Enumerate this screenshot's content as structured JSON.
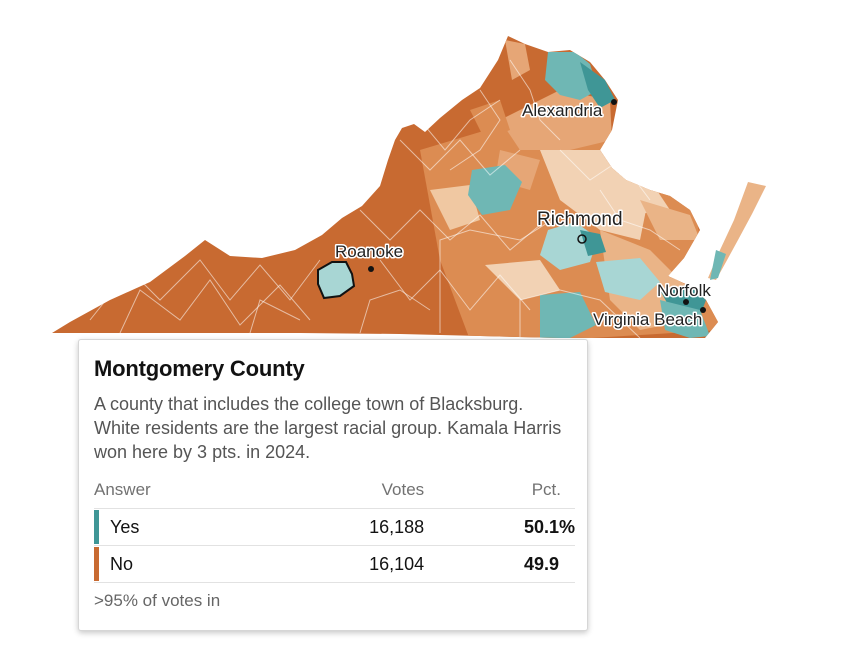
{
  "colors": {
    "yes_strong": "#3f9696",
    "yes_mid": "#6fb7b4",
    "yes_light": "#a8d6d4",
    "no_strong": "#c86a31",
    "no_mid": "#dc8c52",
    "no_light": "#eab487",
    "no_pale": "#f2d2b4"
  },
  "map": {
    "cities": [
      {
        "name": "Alexandria"
      },
      {
        "name": "Richmond"
      },
      {
        "name": "Roanoke"
      },
      {
        "name": "Norfolk"
      },
      {
        "name": "Virginia Beach"
      }
    ]
  },
  "tooltip": {
    "title": "Montgomery County",
    "description": "A county that includes the college town of Blacksburg. White residents are the largest racial group. Kamala Harris won here by 3 pts. in 2024.",
    "columns": {
      "answer": "Answer",
      "votes": "Votes",
      "pct": "Pct."
    },
    "rows": [
      {
        "answer": "Yes",
        "votes": "16,188",
        "pct": "50.1%",
        "color": "#3f9696"
      },
      {
        "answer": "No",
        "votes": "16,104",
        "pct": "49.9",
        "color": "#c86a31"
      }
    ],
    "footer": ">95% of votes in"
  }
}
